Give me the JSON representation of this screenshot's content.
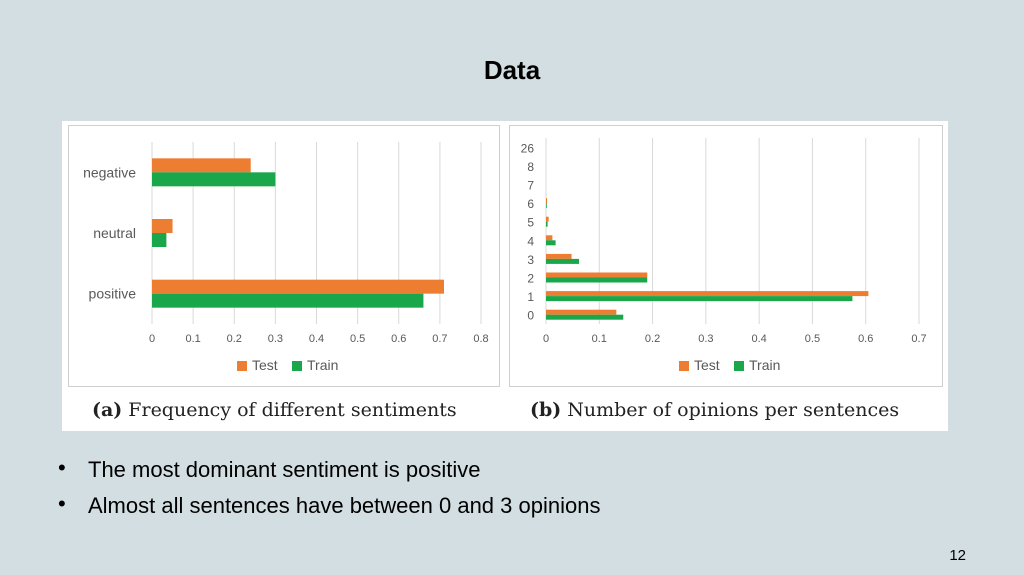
{
  "slide": {
    "title": "Data",
    "bullets": [
      "The most dominant sentiment is positive",
      "Almost all sentences have between 0 and 3 opinions"
    ],
    "page_number": "12"
  },
  "captions": {
    "a_label": "(a)",
    "a_text": "Frequency of different sentiments",
    "b_label": "(b)",
    "b_text": "Number of opinions per sentences"
  },
  "colors": {
    "test": "#ed7d31",
    "train": "#1aa64a",
    "grid": "#d9d9d9",
    "tick": "#595959"
  },
  "chart_data": [
    {
      "type": "bar",
      "orientation": "horizontal",
      "categories": [
        "negative",
        "neutral",
        "positive"
      ],
      "series": [
        {
          "name": "Test",
          "values": [
            0.24,
            0.05,
            0.71
          ]
        },
        {
          "name": "Train",
          "values": [
            0.3,
            0.035,
            0.66
          ]
        }
      ],
      "xlim": [
        0,
        0.8
      ],
      "xticks": [
        "0",
        "0.1",
        "0.2",
        "0.3",
        "0.4",
        "0.5",
        "0.6",
        "0.7",
        "0.8"
      ],
      "grid": true,
      "legend": "bottom-center"
    },
    {
      "type": "bar",
      "orientation": "horizontal",
      "categories": [
        "26",
        "8",
        "7",
        "6",
        "5",
        "4",
        "3",
        "2",
        "1",
        "0"
      ],
      "series": [
        {
          "name": "Test",
          "values": [
            0,
            0,
            0,
            0.002,
            0.005,
            0.012,
            0.048,
            0.19,
            0.605,
            0.132
          ]
        },
        {
          "name": "Train",
          "values": [
            0,
            0,
            0,
            0.001,
            0.003,
            0.018,
            0.062,
            0.19,
            0.575,
            0.145
          ]
        }
      ],
      "xlim": [
        0,
        0.7
      ],
      "xticks": [
        "0",
        "0.1",
        "0.2",
        "0.3",
        "0.4",
        "0.5",
        "0.6",
        "0.7"
      ],
      "grid": true,
      "legend": "bottom-center"
    }
  ]
}
